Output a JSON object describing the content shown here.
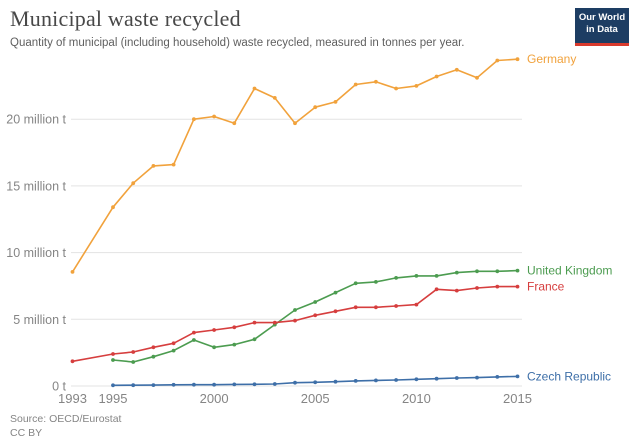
{
  "header": {
    "title": "Municipal waste recycled",
    "subtitle": "Quantity of municipal (including household) waste recycled, measured in tonnes per year.",
    "logo": {
      "line1": "Our World",
      "line2": "in Data",
      "bg_color": "#1d3d63",
      "accent_color": "#d93a2d"
    }
  },
  "footer": {
    "source": "Source: OECD/Eurostat",
    "license": "CC BY"
  },
  "chart_data": {
    "type": "line",
    "title": "Municipal waste recycled",
    "xlabel": "",
    "ylabel": "",
    "unit": "million tonnes per year",
    "x_range": [
      1993,
      2015
    ],
    "ylim": [
      0,
      25
    ],
    "grid": "horizontal",
    "legend_position": "end-of-line-labels",
    "x_ticks": [
      "1993",
      "1995",
      "2000",
      "2005",
      "2010",
      "2015"
    ],
    "y_ticks": [
      {
        "value": 0,
        "label": "0 t"
      },
      {
        "value": 5,
        "label": "5 million t"
      },
      {
        "value": 10,
        "label": "10 million t"
      },
      {
        "value": 15,
        "label": "15 million t"
      },
      {
        "value": 20,
        "label": "20 million t"
      }
    ],
    "series": [
      {
        "id": "germany",
        "name": "Germany",
        "color": "#F1A23C",
        "points": [
          [
            1993,
            8.55
          ],
          [
            1995,
            13.4
          ],
          [
            1996,
            15.2
          ],
          [
            1997,
            16.5
          ],
          [
            1998,
            16.6
          ],
          [
            1999,
            20.0
          ],
          [
            2000,
            20.2
          ],
          [
            2001,
            19.7
          ],
          [
            2002,
            22.3
          ],
          [
            2003,
            21.6
          ],
          [
            2004,
            19.7
          ],
          [
            2005,
            20.9
          ],
          [
            2006,
            21.3
          ],
          [
            2007,
            22.6
          ],
          [
            2008,
            22.8
          ],
          [
            2009,
            22.3
          ],
          [
            2010,
            22.5
          ],
          [
            2011,
            23.2
          ],
          [
            2012,
            23.7
          ],
          [
            2013,
            23.1
          ],
          [
            2014,
            24.4
          ],
          [
            2015,
            24.5
          ]
        ]
      },
      {
        "id": "united-kingdom",
        "name": "United Kingdom",
        "color": "#4C9C50",
        "points": [
          [
            1995,
            1.95
          ],
          [
            1996,
            1.8
          ],
          [
            1997,
            2.2
          ],
          [
            1998,
            2.65
          ],
          [
            1999,
            3.45
          ],
          [
            2000,
            2.9
          ],
          [
            2001,
            3.1
          ],
          [
            2002,
            3.5
          ],
          [
            2003,
            4.6
          ],
          [
            2004,
            5.7
          ],
          [
            2005,
            6.3
          ],
          [
            2006,
            7.0
          ],
          [
            2007,
            7.7
          ],
          [
            2008,
            7.8
          ],
          [
            2009,
            8.1
          ],
          [
            2010,
            8.25
          ],
          [
            2011,
            8.25
          ],
          [
            2012,
            8.5
          ],
          [
            2013,
            8.6
          ],
          [
            2014,
            8.6
          ],
          [
            2015,
            8.65
          ]
        ]
      },
      {
        "id": "france",
        "name": "France",
        "color": "#D63E3E",
        "points": [
          [
            1993,
            1.85
          ],
          [
            1995,
            2.4
          ],
          [
            1996,
            2.55
          ],
          [
            1997,
            2.9
          ],
          [
            1998,
            3.2
          ],
          [
            1999,
            4.0
          ],
          [
            2000,
            4.2
          ],
          [
            2001,
            4.4
          ],
          [
            2002,
            4.75
          ],
          [
            2003,
            4.75
          ],
          [
            2004,
            4.9
          ],
          [
            2005,
            5.3
          ],
          [
            2006,
            5.6
          ],
          [
            2007,
            5.9
          ],
          [
            2008,
            5.9
          ],
          [
            2009,
            6.0
          ],
          [
            2010,
            6.1
          ],
          [
            2011,
            7.25
          ],
          [
            2012,
            7.15
          ],
          [
            2013,
            7.35
          ],
          [
            2014,
            7.45
          ],
          [
            2015,
            7.45
          ]
        ]
      },
      {
        "id": "czech-republic",
        "name": "Czech Republic",
        "color": "#3E6FA8",
        "points": [
          [
            1995,
            0.05
          ],
          [
            1996,
            0.06
          ],
          [
            1997,
            0.07
          ],
          [
            1998,
            0.09
          ],
          [
            1999,
            0.1
          ],
          [
            2000,
            0.1
          ],
          [
            2001,
            0.12
          ],
          [
            2002,
            0.13
          ],
          [
            2003,
            0.15
          ],
          [
            2004,
            0.25
          ],
          [
            2005,
            0.28
          ],
          [
            2006,
            0.32
          ],
          [
            2007,
            0.38
          ],
          [
            2008,
            0.42
          ],
          [
            2009,
            0.45
          ],
          [
            2010,
            0.5
          ],
          [
            2011,
            0.55
          ],
          [
            2012,
            0.6
          ],
          [
            2013,
            0.63
          ],
          [
            2014,
            0.68
          ],
          [
            2015,
            0.72
          ]
        ]
      }
    ]
  }
}
